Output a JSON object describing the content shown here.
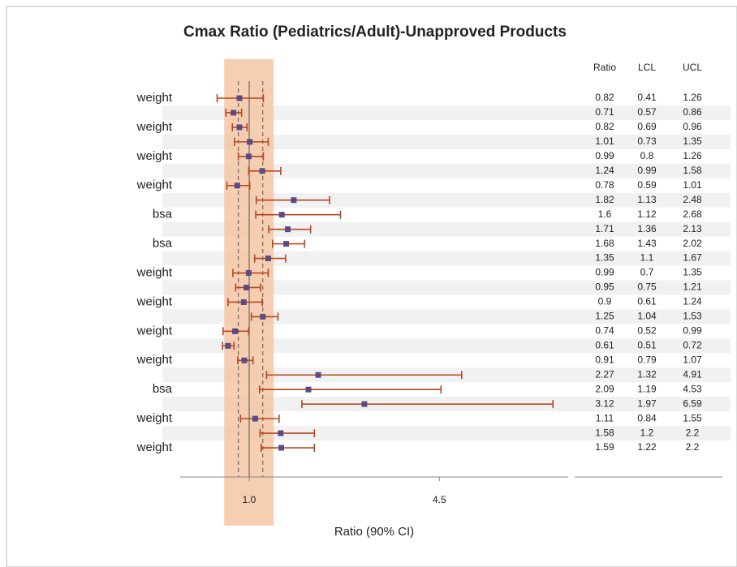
{
  "chart_data": {
    "type": "forest",
    "title": "Cmax Ratio (Pediatrics/Adult)-Unapproved Products",
    "x_label": "Ratio (90% CI)",
    "columns": [
      "Ratio",
      "LCL",
      "UCL"
    ],
    "categories": [
      "weight",
      null,
      "weight",
      null,
      "weight",
      null,
      "weight",
      null,
      "bsa",
      null,
      "bsa",
      null,
      "weight",
      null,
      "weight",
      null,
      "weight",
      null,
      "weight",
      null,
      "bsa",
      null,
      "weight",
      null,
      "weight"
    ],
    "ratio": [
      0.82,
      0.71,
      0.82,
      1.01,
      0.99,
      1.24,
      0.78,
      1.82,
      1.6,
      1.71,
      1.68,
      1.35,
      0.99,
      0.95,
      0.9,
      1.25,
      0.74,
      0.61,
      0.91,
      2.27,
      2.09,
      3.12,
      1.11,
      1.58,
      1.59
    ],
    "lcl": [
      0.41,
      0.57,
      0.69,
      0.73,
      0.8,
      0.99,
      0.59,
      1.13,
      1.12,
      1.36,
      1.43,
      1.1,
      0.7,
      0.75,
      0.61,
      1.04,
      0.52,
      0.51,
      0.79,
      1.32,
      1.19,
      1.97,
      0.84,
      1.2,
      1.22
    ],
    "ucl": [
      1.26,
      0.86,
      0.96,
      1.35,
      1.26,
      1.58,
      1.01,
      2.48,
      2.68,
      2.13,
      2.02,
      1.67,
      1.35,
      1.21,
      1.24,
      1.53,
      0.99,
      0.72,
      1.07,
      4.91,
      4.53,
      6.59,
      1.55,
      2.2,
      2.2
    ],
    "xlim": [
      -0.27,
      6.87
    ],
    "xticks": [
      {
        "value": 1,
        "label": "1.0"
      },
      4.5
    ],
    "reference_lines": [
      0.8,
      1,
      1.25
    ],
    "shaded_range": [
      0.54,
      1.45
    ],
    "shade_color": "#f5c6a5",
    "ci_color": "#b8461e",
    "marker_color": "#5a4a86"
  }
}
